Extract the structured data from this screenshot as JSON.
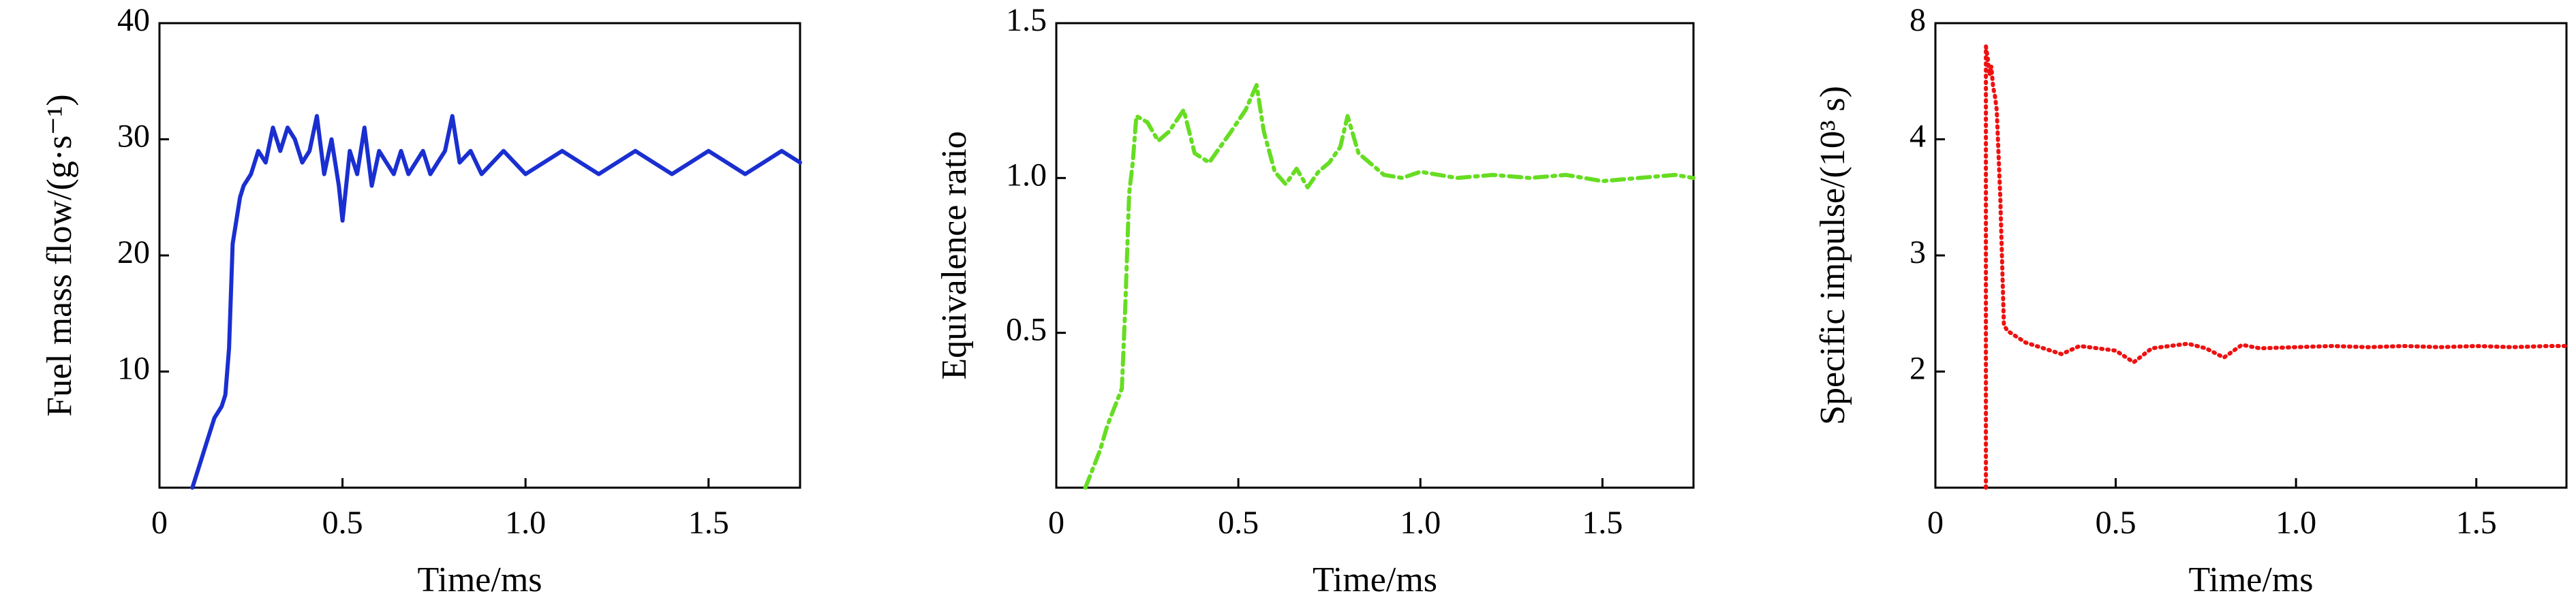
{
  "chart_data": [
    {
      "type": "line",
      "xlabel": "Time/ms",
      "ylabel": "Fuel mass flow/(g·s⁻¹)",
      "xlim": [
        0,
        1.75
      ],
      "xticks": [
        0,
        0.5,
        {
          "value": 1,
          "label": "1.0"
        },
        1.5
      ],
      "ylim": [
        0,
        40
      ],
      "yticks": [
        10,
        20,
        30,
        40
      ],
      "color": "#1a2fd0",
      "linestyle": "solid",
      "x": [
        0.09,
        0.11,
        0.13,
        0.15,
        0.17,
        0.18,
        0.19,
        0.2,
        0.21,
        0.22,
        0.23,
        0.25,
        0.27,
        0.29,
        0.31,
        0.33,
        0.35,
        0.37,
        0.39,
        0.41,
        0.43,
        0.45,
        0.47,
        0.49,
        0.5,
        0.52,
        0.54,
        0.56,
        0.58,
        0.6,
        0.62,
        0.64,
        0.66,
        0.68,
        0.7,
        0.72,
        0.74,
        0.76,
        0.78,
        0.8,
        0.82,
        0.85,
        0.88,
        0.91,
        0.94,
        0.97,
        1.0,
        1.05,
        1.1,
        1.15,
        1.2,
        1.25,
        1.3,
        1.35,
        1.4,
        1.45,
        1.5,
        1.55,
        1.6,
        1.65,
        1.7,
        1.75
      ],
      "values": [
        0,
        2,
        4,
        6,
        7,
        8,
        12,
        21,
        23,
        25,
        26,
        27,
        29,
        28,
        31,
        29,
        31,
        30,
        28,
        29,
        32,
        27,
        30,
        26,
        23,
        29,
        27,
        31,
        26,
        29,
        28,
        27,
        29,
        27,
        28,
        29,
        27,
        28,
        29,
        32,
        28,
        29,
        27,
        28,
        29,
        28,
        27,
        28,
        29,
        28,
        27,
        28,
        29,
        28,
        27,
        28,
        29,
        28,
        27,
        28,
        29,
        28
      ]
    },
    {
      "type": "line",
      "xlabel": "Time/ms",
      "ylabel": "Equivalence ratio",
      "xlim": [
        0,
        1.75
      ],
      "xticks": [
        0,
        0.5,
        {
          "value": 1,
          "label": "1.0"
        },
        1.5
      ],
      "ylim": [
        0,
        1.5
      ],
      "yticks": [
        0.5,
        {
          "value": 1,
          "label": "1.0"
        },
        1.5
      ],
      "color": "#66dd22",
      "linestyle": "dashdot",
      "x": [
        0.08,
        0.1,
        0.12,
        0.14,
        0.16,
        0.18,
        0.19,
        0.2,
        0.21,
        0.22,
        0.25,
        0.28,
        0.31,
        0.35,
        0.38,
        0.42,
        0.45,
        0.48,
        0.52,
        0.55,
        0.57,
        0.6,
        0.63,
        0.66,
        0.69,
        0.72,
        0.75,
        0.78,
        0.8,
        0.83,
        0.86,
        0.9,
        0.95,
        1.0,
        1.1,
        1.2,
        1.3,
        1.4,
        1.5,
        1.6,
        1.7,
        1.75
      ],
      "values": [
        0,
        0.06,
        0.12,
        0.2,
        0.26,
        0.32,
        0.6,
        0.95,
        1.05,
        1.2,
        1.18,
        1.12,
        1.15,
        1.22,
        1.08,
        1.05,
        1.1,
        1.15,
        1.22,
        1.3,
        1.15,
        1.02,
        0.98,
        1.03,
        0.97,
        1.02,
        1.05,
        1.1,
        1.2,
        1.08,
        1.05,
        1.01,
        1.0,
        1.02,
        1.0,
        1.01,
        1.0,
        1.01,
        0.99,
        1.0,
        1.01,
        1.0
      ]
    },
    {
      "type": "line",
      "xlabel": "Time/ms",
      "ylabel": "Specific impulse/(10³ s)",
      "xlim": [
        0,
        1.75
      ],
      "xticks": [
        0,
        0.5,
        {
          "value": 1,
          "label": "1.0"
        },
        1.5
      ],
      "ylim": [
        1,
        8
      ],
      "yticks": [
        2,
        3,
        4,
        8
      ],
      "color": "#ee1111",
      "linestyle": "dotted",
      "x": [
        0.14,
        0.14,
        0.145,
        0.15,
        0.155,
        0.16,
        0.165,
        0.17,
        0.18,
        0.19,
        0.2,
        0.25,
        0.3,
        0.35,
        0.4,
        0.45,
        0.5,
        0.55,
        0.6,
        0.65,
        0.7,
        0.75,
        0.8,
        0.85,
        0.9,
        1.0,
        1.1,
        1.2,
        1.3,
        1.4,
        1.5,
        1.6,
        1.7,
        1.75
      ],
      "values": [
        1,
        7.2,
        6.8,
        6.2,
        6.5,
        5.8,
        5.5,
        5.0,
        3.5,
        2.4,
        2.35,
        2.25,
        2.2,
        2.15,
        2.22,
        2.2,
        2.18,
        2.08,
        2.2,
        2.22,
        2.24,
        2.2,
        2.12,
        2.23,
        2.2,
        2.21,
        2.22,
        2.21,
        2.22,
        2.21,
        2.22,
        2.21,
        2.22,
        2.22
      ]
    }
  ]
}
